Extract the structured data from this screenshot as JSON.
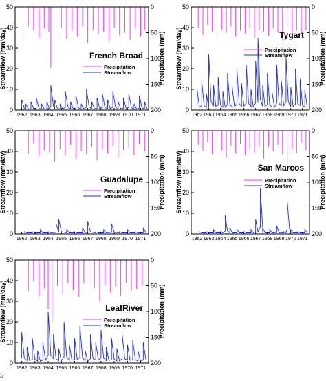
{
  "page_number": "5",
  "colors": {
    "precipitation": "#ff33ff",
    "streamflow": "#1f2fd6",
    "axis": "#000000"
  },
  "chart_data": [
    {
      "type": "line",
      "title": "French Broad",
      "xlabel": "",
      "ylabel": "Streamflow (mm/day)",
      "y2label": "Precipitation (mm)",
      "ylim": [
        0,
        50
      ],
      "y2lim": [
        200,
        0
      ],
      "y2_inverted": true,
      "yticks": [
        "0",
        "10",
        "20",
        "30",
        "40",
        "50"
      ],
      "y2ticks": [
        "0",
        "50",
        "100",
        "150",
        "200"
      ],
      "xticks": [
        "1962",
        "1963",
        "1964",
        "1965",
        "1966",
        "1967",
        "1968",
        "1969",
        "1970",
        "1971"
      ],
      "xlim": [
        1961.5,
        1971.6
      ],
      "grid": false,
      "legend": "right",
      "series": [
        {
          "name": "Precipitation",
          "axis": "right",
          "color": "#ff33ff",
          "x": [
            1962.1,
            1962.5,
            1962.9,
            1963.3,
            1963.7,
            1964.05,
            1964.2,
            1964.6,
            1965.0,
            1965.4,
            1965.8,
            1966.2,
            1966.6,
            1967.0,
            1967.4,
            1967.8,
            1968.2,
            1968.6,
            1969.0,
            1969.4,
            1969.8,
            1970.2,
            1970.6,
            1971.0,
            1971.3
          ],
          "values": [
            52,
            38,
            45,
            60,
            42,
            48,
            118,
            55,
            40,
            62,
            46,
            58,
            38,
            70,
            44,
            52,
            48,
            66,
            40,
            55,
            50,
            64,
            42,
            58,
            46
          ]
        },
        {
          "name": "Streamflow",
          "axis": "left",
          "color": "#1f2fd6",
          "x": [
            1962.0,
            1962.3,
            1962.7,
            1963.1,
            1963.5,
            1963.9,
            1964.2,
            1964.5,
            1964.9,
            1965.3,
            1965.7,
            1966.1,
            1966.5,
            1966.9,
            1967.3,
            1967.7,
            1968.1,
            1968.5,
            1968.9,
            1969.3,
            1969.7,
            1970.1,
            1970.5,
            1970.9,
            1971.3
          ],
          "values": [
            5,
            3,
            4,
            6,
            3,
            4,
            12,
            5,
            3,
            9,
            4,
            7,
            3,
            10,
            4,
            6,
            8,
            5,
            9,
            4,
            6,
            8,
            3,
            7,
            4
          ]
        }
      ]
    },
    {
      "type": "line",
      "title": "Tygart",
      "xlabel": "",
      "ylabel": "Streamflow (mm/day)",
      "y2label": "Precipitation (mm)",
      "ylim": [
        0,
        50
      ],
      "y2lim": [
        200,
        0
      ],
      "y2_inverted": true,
      "yticks": [
        "0",
        "10",
        "20",
        "30",
        "40",
        "50"
      ],
      "y2ticks": [
        "0",
        "50",
        "100",
        "150",
        "200"
      ],
      "xticks": [
        "1962",
        "1963",
        "1964",
        "1965",
        "1966",
        "1967",
        "1968",
        "1969",
        "1970",
        "1971"
      ],
      "xlim": [
        1961.5,
        1971.6
      ],
      "grid": false,
      "legend": "right",
      "series": [
        {
          "name": "Precipitation",
          "axis": "right",
          "color": "#ff33ff",
          "x": [
            1962.1,
            1962.5,
            1962.9,
            1963.3,
            1963.7,
            1964.1,
            1964.5,
            1964.9,
            1965.3,
            1965.7,
            1966.1,
            1966.5,
            1966.9,
            1967.3,
            1967.7,
            1968.1,
            1968.5,
            1968.9,
            1969.3,
            1969.7,
            1970.1,
            1970.5,
            1970.9,
            1971.3
          ],
          "values": [
            40,
            55,
            35,
            48,
            62,
            44,
            50,
            38,
            58,
            46,
            52,
            40,
            60,
            44,
            48,
            56,
            42,
            50,
            64,
            38,
            54,
            46,
            52,
            44
          ]
        },
        {
          "name": "Streamflow",
          "axis": "left",
          "color": "#1f2fd6",
          "x": [
            1962.0,
            1962.4,
            1962.8,
            1963.0,
            1963.4,
            1963.8,
            1964.2,
            1964.6,
            1965.0,
            1965.4,
            1965.8,
            1966.2,
            1966.6,
            1967.0,
            1967.2,
            1967.6,
            1968.0,
            1968.4,
            1968.8,
            1969.2,
            1969.6,
            1970.0,
            1970.4,
            1970.8,
            1971.2
          ],
          "values": [
            10,
            14,
            8,
            27,
            12,
            16,
            9,
            18,
            11,
            20,
            13,
            22,
            10,
            24,
            35,
            12,
            18,
            9,
            22,
            14,
            26,
            11,
            20,
            15,
            10
          ]
        }
      ]
    },
    {
      "type": "line",
      "title": "Guadalupe",
      "xlabel": "",
      "ylabel": "Streamflow (mm/day)",
      "y2label": "Precipitation (mm)",
      "ylim": [
        0,
        50
      ],
      "y2lim": [
        200,
        0
      ],
      "y2_inverted": true,
      "yticks": [
        "0",
        "10",
        "20",
        "30",
        "40",
        "50"
      ],
      "y2ticks": [
        "0",
        "50",
        "100",
        "150",
        "200"
      ],
      "xticks": [
        "1962",
        "1963",
        "1964",
        "1965",
        "1966",
        "1967",
        "1968",
        "1969",
        "1970",
        "1971"
      ],
      "xlim": [
        1961.5,
        1971.6
      ],
      "grid": false,
      "legend": "right",
      "series": [
        {
          "name": "Precipitation",
          "axis": "right",
          "color": "#ff33ff",
          "x": [
            1962.1,
            1962.5,
            1962.9,
            1963.3,
            1963.7,
            1964.1,
            1964.5,
            1964.9,
            1965.3,
            1965.7,
            1966.1,
            1966.5,
            1966.9,
            1967.3,
            1967.7,
            1968.1,
            1968.5,
            1968.9,
            1969.3,
            1969.7,
            1970.1,
            1970.5,
            1970.9,
            1971.3
          ],
          "values": [
            30,
            45,
            25,
            50,
            38,
            42,
            60,
            35,
            48,
            28,
            55,
            40,
            46,
            32,
            58,
            36,
            44,
            30,
            52,
            38,
            34,
            48,
            26,
            40
          ]
        },
        {
          "name": "Streamflow",
          "axis": "left",
          "color": "#1f2fd6",
          "x": [
            1962.2,
            1962.8,
            1963.4,
            1964.0,
            1964.6,
            1964.8,
            1965.4,
            1966.0,
            1966.6,
            1967.0,
            1967.6,
            1968.2,
            1968.8,
            1969.4,
            1970.0,
            1970.6,
            1971.2
          ],
          "values": [
            1,
            1,
            2,
            1,
            5,
            7,
            2,
            1,
            3,
            6,
            1,
            2,
            5,
            1,
            2,
            1,
            3
          ]
        }
      ]
    },
    {
      "type": "line",
      "title": "San Marcos",
      "xlabel": "",
      "ylabel": "Streamflow (mm/day)",
      "y2label": "Precipitation (mm)",
      "ylim": [
        0,
        50
      ],
      "y2lim": [
        200,
        0
      ],
      "y2_inverted": true,
      "yticks": [
        "0",
        "10",
        "20",
        "30",
        "40",
        "50"
      ],
      "y2ticks": [
        "0",
        "50",
        "100",
        "150",
        "200"
      ],
      "xticks": [
        "1962",
        "1963",
        "1964",
        "1965",
        "1966",
        "1967",
        "1968",
        "1969",
        "1970",
        "1971"
      ],
      "xlim": [
        1961.5,
        1971.6
      ],
      "grid": false,
      "legend": "right",
      "series": [
        {
          "name": "Precipitation",
          "axis": "right",
          "color": "#ff33ff",
          "x": [
            1962.1,
            1962.5,
            1962.9,
            1963.3,
            1963.7,
            1964.1,
            1964.5,
            1964.9,
            1965.3,
            1965.7,
            1966.1,
            1966.5,
            1966.9,
            1967.3,
            1967.7,
            1968.1,
            1968.5,
            1968.9,
            1969.3,
            1969.7,
            1970.1,
            1970.5,
            1970.9,
            1971.3
          ],
          "values": [
            28,
            40,
            22,
            46,
            34,
            38,
            52,
            30,
            44,
            26,
            48,
            36,
            42,
            30,
            54,
            32,
            40,
            28,
            46,
            70,
            36,
            44,
            24,
            38
          ]
        },
        {
          "name": "Streamflow",
          "axis": "left",
          "color": "#1f2fd6",
          "x": [
            1962.2,
            1962.8,
            1963.4,
            1964.0,
            1964.4,
            1964.8,
            1965.4,
            1966.0,
            1966.6,
            1967.0,
            1967.4,
            1967.6,
            1968.2,
            1968.8,
            1969.4,
            1969.7,
            1970.0,
            1970.6,
            1971.2
          ],
          "values": [
            1,
            1,
            2,
            1,
            9,
            3,
            2,
            1,
            2,
            7,
            22,
            3,
            2,
            4,
            1,
            16,
            2,
            1,
            2
          ]
        }
      ]
    },
    {
      "type": "line",
      "title": "LeafRiver",
      "xlabel": "",
      "ylabel": "Streamflow (mm/day)",
      "y2label": "Precipitation (mm)",
      "ylim": [
        0,
        50
      ],
      "y2lim": [
        200,
        0
      ],
      "y2_inverted": true,
      "yticks": [
        "0",
        "10",
        "20",
        "30",
        "40",
        "50"
      ],
      "y2ticks": [
        "0",
        "50",
        "100",
        "150",
        "200"
      ],
      "xticks": [
        "1962",
        "1963",
        "1964",
        "1965",
        "1966",
        "1967",
        "1968",
        "1969",
        "1970",
        "1971"
      ],
      "xlim": [
        1961.5,
        1971.6
      ],
      "grid": false,
      "legend": "right",
      "series": [
        {
          "name": "Precipitation",
          "axis": "right",
          "color": "#ff33ff",
          "x": [
            1962.1,
            1962.5,
            1962.9,
            1963.3,
            1963.7,
            1964.0,
            1964.3,
            1964.7,
            1965.1,
            1965.5,
            1965.9,
            1966.3,
            1966.7,
            1967.1,
            1967.5,
            1967.9,
            1968.3,
            1968.7,
            1969.1,
            1969.5,
            1969.9,
            1970.3,
            1970.7,
            1971.1
          ],
          "values": [
            48,
            60,
            42,
            70,
            55,
            95,
            120,
            50,
            66,
            44,
            58,
            72,
            46,
            62,
            54,
            80,
            48,
            64,
            52,
            70,
            44,
            60,
            56,
            50
          ]
        },
        {
          "name": "Streamflow",
          "axis": "left",
          "color": "#1f2fd6",
          "x": [
            1962.0,
            1962.4,
            1962.8,
            1963.2,
            1963.6,
            1964.0,
            1964.4,
            1964.8,
            1965.2,
            1965.6,
            1966.0,
            1966.4,
            1966.8,
            1967.2,
            1967.6,
            1968.0,
            1968.4,
            1968.8,
            1969.2,
            1969.6,
            1970.0,
            1970.4,
            1970.8,
            1971.2
          ],
          "values": [
            15,
            8,
            12,
            6,
            10,
            25,
            14,
            7,
            20,
            9,
            12,
            18,
            6,
            14,
            10,
            16,
            8,
            12,
            7,
            14,
            9,
            11,
            6,
            10
          ]
        }
      ]
    }
  ]
}
